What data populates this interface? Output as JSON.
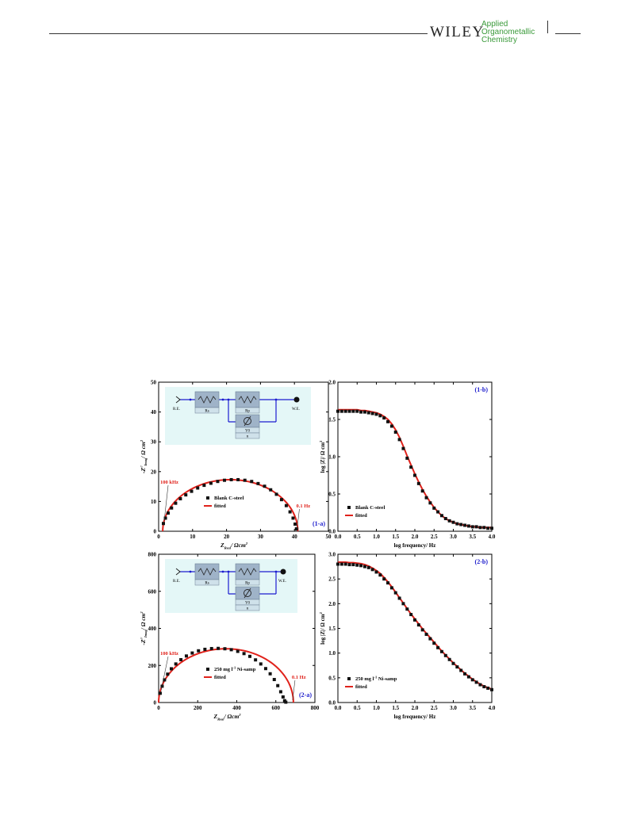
{
  "header": {
    "publisher": "WILEY",
    "journal_line1": "Applied",
    "journal_line2": "Organometallic",
    "journal_line3": "Chemistry"
  },
  "colors": {
    "fit": "#e0221b",
    "points": "#111111",
    "label_blue": "#1a1acc",
    "label_red": "#e0221b",
    "circuit_bg": "#e4f7f7",
    "circuit_box": "#9fb3c8",
    "wire": "#1c1cd0"
  },
  "circuit": {
    "re": "R.E.",
    "we": "W.E.",
    "rs": "Rs",
    "rp": "Rp",
    "y0": "Y0",
    "n": "n"
  },
  "chart_data": [
    {
      "id": "1-a",
      "type": "scatter",
      "label": "(1-a)",
      "xlabel_main": "Z",
      "xlabel_sub": "Real",
      "xlabel_unit": "/ Ωcm",
      "xlabel_sup": "2",
      "ylabel_main": "-Z",
      "ylabel_sup": "//",
      "ylabel_sub": "Imag",
      "ylabel_unit": "/ Ω cm",
      "ylabel_unit_sup": "2",
      "xlim": [
        0,
        50
      ],
      "ylim": [
        0,
        50
      ],
      "xticks": [
        "0",
        "10",
        "20",
        "30",
        "40",
        "50"
      ],
      "yticks": [
        "0",
        "10",
        "20",
        "30",
        "40",
        "50"
      ],
      "legend": [
        "Blank C-steel",
        "fitted"
      ],
      "annot_high": "100 kHz",
      "annot_low": "0.1 Hz",
      "semicircle": {
        "x_start": 1.2,
        "x_end": 41.0,
        "peak": 17.3
      },
      "x": [
        1.4,
        2.0,
        2.8,
        3.8,
        5.0,
        6.4,
        8.0,
        9.7,
        11.5,
        13.4,
        15.4,
        17.4,
        19.4,
        21.4,
        23.4,
        25.4,
        27.4,
        29.3,
        31.2,
        33.0,
        34.7,
        36.2,
        37.6,
        38.7,
        39.6,
        40.2,
        40.6
      ],
      "y": [
        2.6,
        4.4,
        6.1,
        7.8,
        9.4,
        10.9,
        12.2,
        13.4,
        14.5,
        15.4,
        16.1,
        16.7,
        17.1,
        17.3,
        17.3,
        17.1,
        16.7,
        16.0,
        15.1,
        13.9,
        12.4,
        10.6,
        8.6,
        6.5,
        4.4,
        2.4,
        0.8
      ]
    },
    {
      "id": "1-b",
      "type": "scatter",
      "label": "(1-b)",
      "xlabel": "log frequency/ Hz",
      "ylabel_main": "log |Z|/ Ω cm",
      "ylabel_sup": "2",
      "xlim": [
        0,
        4
      ],
      "ylim": [
        0,
        2
      ],
      "xticks": [
        "0.0",
        "0.5",
        "1.0",
        "1.5",
        "2.0",
        "2.5",
        "3.0",
        "3.5",
        "4.0"
      ],
      "yticks": [
        "0.0",
        "0.5",
        "1.0",
        "1.5",
        "2.0"
      ],
      "legend": [
        "Blank C-steel",
        "fitted"
      ],
      "x": [
        0.0,
        0.1,
        0.2,
        0.3,
        0.4,
        0.5,
        0.6,
        0.7,
        0.8,
        0.9,
        1.0,
        1.1,
        1.2,
        1.3,
        1.4,
        1.5,
        1.6,
        1.7,
        1.8,
        1.9,
        2.0,
        2.1,
        2.2,
        2.3,
        2.4,
        2.5,
        2.6,
        2.7,
        2.8,
        2.9,
        3.0,
        3.1,
        3.2,
        3.3,
        3.4,
        3.5,
        3.6,
        3.7,
        3.8,
        3.9,
        4.0
      ],
      "y": [
        1.61,
        1.61,
        1.61,
        1.61,
        1.61,
        1.61,
        1.6,
        1.6,
        1.59,
        1.58,
        1.57,
        1.55,
        1.52,
        1.47,
        1.41,
        1.33,
        1.23,
        1.11,
        0.98,
        0.86,
        0.75,
        0.64,
        0.54,
        0.45,
        0.38,
        0.31,
        0.26,
        0.21,
        0.17,
        0.14,
        0.12,
        0.1,
        0.09,
        0.08,
        0.07,
        0.06,
        0.06,
        0.05,
        0.05,
        0.04,
        0.04
      ],
      "fit": [
        1.63,
        1.63,
        1.63,
        1.63,
        1.63,
        1.63,
        1.62,
        1.62,
        1.61,
        1.6,
        1.59,
        1.57,
        1.54,
        1.5,
        1.44,
        1.36,
        1.26,
        1.14,
        1.01,
        0.89,
        0.77,
        0.66,
        0.56,
        0.47,
        0.39,
        0.32,
        0.26,
        0.21,
        0.17,
        0.14,
        0.12,
        0.1,
        0.09,
        0.08,
        0.07,
        0.06,
        0.06,
        0.05,
        0.05,
        0.05,
        0.05
      ]
    },
    {
      "id": "2-a",
      "type": "scatter",
      "label": "(2-a)",
      "xlabel_main": "Z",
      "xlabel_sub": "Real",
      "xlabel_unit": "/ Ωcm",
      "xlabel_sup": "2",
      "ylabel_main": "-Z",
      "ylabel_sup": "//",
      "ylabel_sub": "Imag",
      "ylabel_unit": "/ Ω cm",
      "ylabel_unit_sup": "2",
      "xlim": [
        0,
        800
      ],
      "ylim": [
        0,
        800
      ],
      "xticks": [
        "0",
        "200",
        "400",
        "600",
        "800"
      ],
      "yticks": [
        "0",
        "200",
        "400",
        "600",
        "800"
      ],
      "legend": [
        "250 mg l",
        "-1",
        " Ni-samp",
        "fitted"
      ],
      "annot_high": "100 kHz",
      "annot_low": "0.1 Hz",
      "semicircle": {
        "x_start": 0,
        "x_end": 690,
        "peak": 290
      },
      "x": [
        8,
        18,
        30,
        46,
        65,
        88,
        114,
        142,
        172,
        204,
        237,
        271,
        305,
        339,
        372,
        405,
        437,
        467,
        496,
        523,
        548,
        571,
        592,
        610,
        625,
        637,
        645,
        651
      ],
      "y": [
        50,
        88,
        122,
        153,
        182,
        208,
        231,
        251,
        267,
        279,
        287,
        291,
        292,
        290,
        285,
        276,
        264,
        249,
        230,
        208,
        183,
        155,
        124,
        91,
        58,
        30,
        10,
        2
      ]
    },
    {
      "id": "2-b",
      "type": "scatter",
      "label": "(2-b)",
      "xlabel": "log frequency/ Hz",
      "ylabel_main": "log |Z|/ Ω cm",
      "ylabel_sup": "2",
      "xlim": [
        0,
        4
      ],
      "ylim": [
        0,
        3
      ],
      "xticks": [
        "0.0",
        "0.5",
        "1.0",
        "1.5",
        "2.0",
        "2.5",
        "3.0",
        "3.5",
        "4.0"
      ],
      "yticks": [
        "0.0",
        "0.5",
        "1.0",
        "1.5",
        "2.0",
        "2.5",
        "3.0"
      ],
      "legend": [
        "250 mg l",
        "-1",
        " Ni-samp",
        "fitted"
      ],
      "x": [
        0.0,
        0.1,
        0.2,
        0.3,
        0.4,
        0.5,
        0.6,
        0.7,
        0.8,
        0.9,
        1.0,
        1.1,
        1.2,
        1.3,
        1.4,
        1.5,
        1.6,
        1.7,
        1.8,
        1.9,
        2.0,
        2.1,
        2.2,
        2.3,
        2.4,
        2.5,
        2.6,
        2.7,
        2.8,
        2.9,
        3.0,
        3.1,
        3.2,
        3.3,
        3.4,
        3.5,
        3.6,
        3.7,
        3.8,
        3.9,
        4.0
      ],
      "y": [
        2.8,
        2.8,
        2.8,
        2.79,
        2.79,
        2.78,
        2.77,
        2.75,
        2.73,
        2.69,
        2.64,
        2.58,
        2.5,
        2.42,
        2.32,
        2.22,
        2.11,
        2.0,
        1.89,
        1.78,
        1.67,
        1.57,
        1.47,
        1.38,
        1.29,
        1.2,
        1.11,
        1.03,
        0.95,
        0.87,
        0.79,
        0.72,
        0.65,
        0.58,
        0.52,
        0.46,
        0.41,
        0.36,
        0.32,
        0.29,
        0.26
      ],
      "fit": [
        2.84,
        2.84,
        2.84,
        2.83,
        2.83,
        2.82,
        2.81,
        2.79,
        2.76,
        2.72,
        2.67,
        2.61,
        2.53,
        2.44,
        2.34,
        2.23,
        2.12,
        2.01,
        1.9,
        1.79,
        1.69,
        1.59,
        1.49,
        1.4,
        1.31,
        1.22,
        1.13,
        1.04,
        0.96,
        0.88,
        0.8,
        0.73,
        0.66,
        0.59,
        0.53,
        0.47,
        0.42,
        0.37,
        0.33,
        0.3,
        0.27
      ]
    }
  ]
}
